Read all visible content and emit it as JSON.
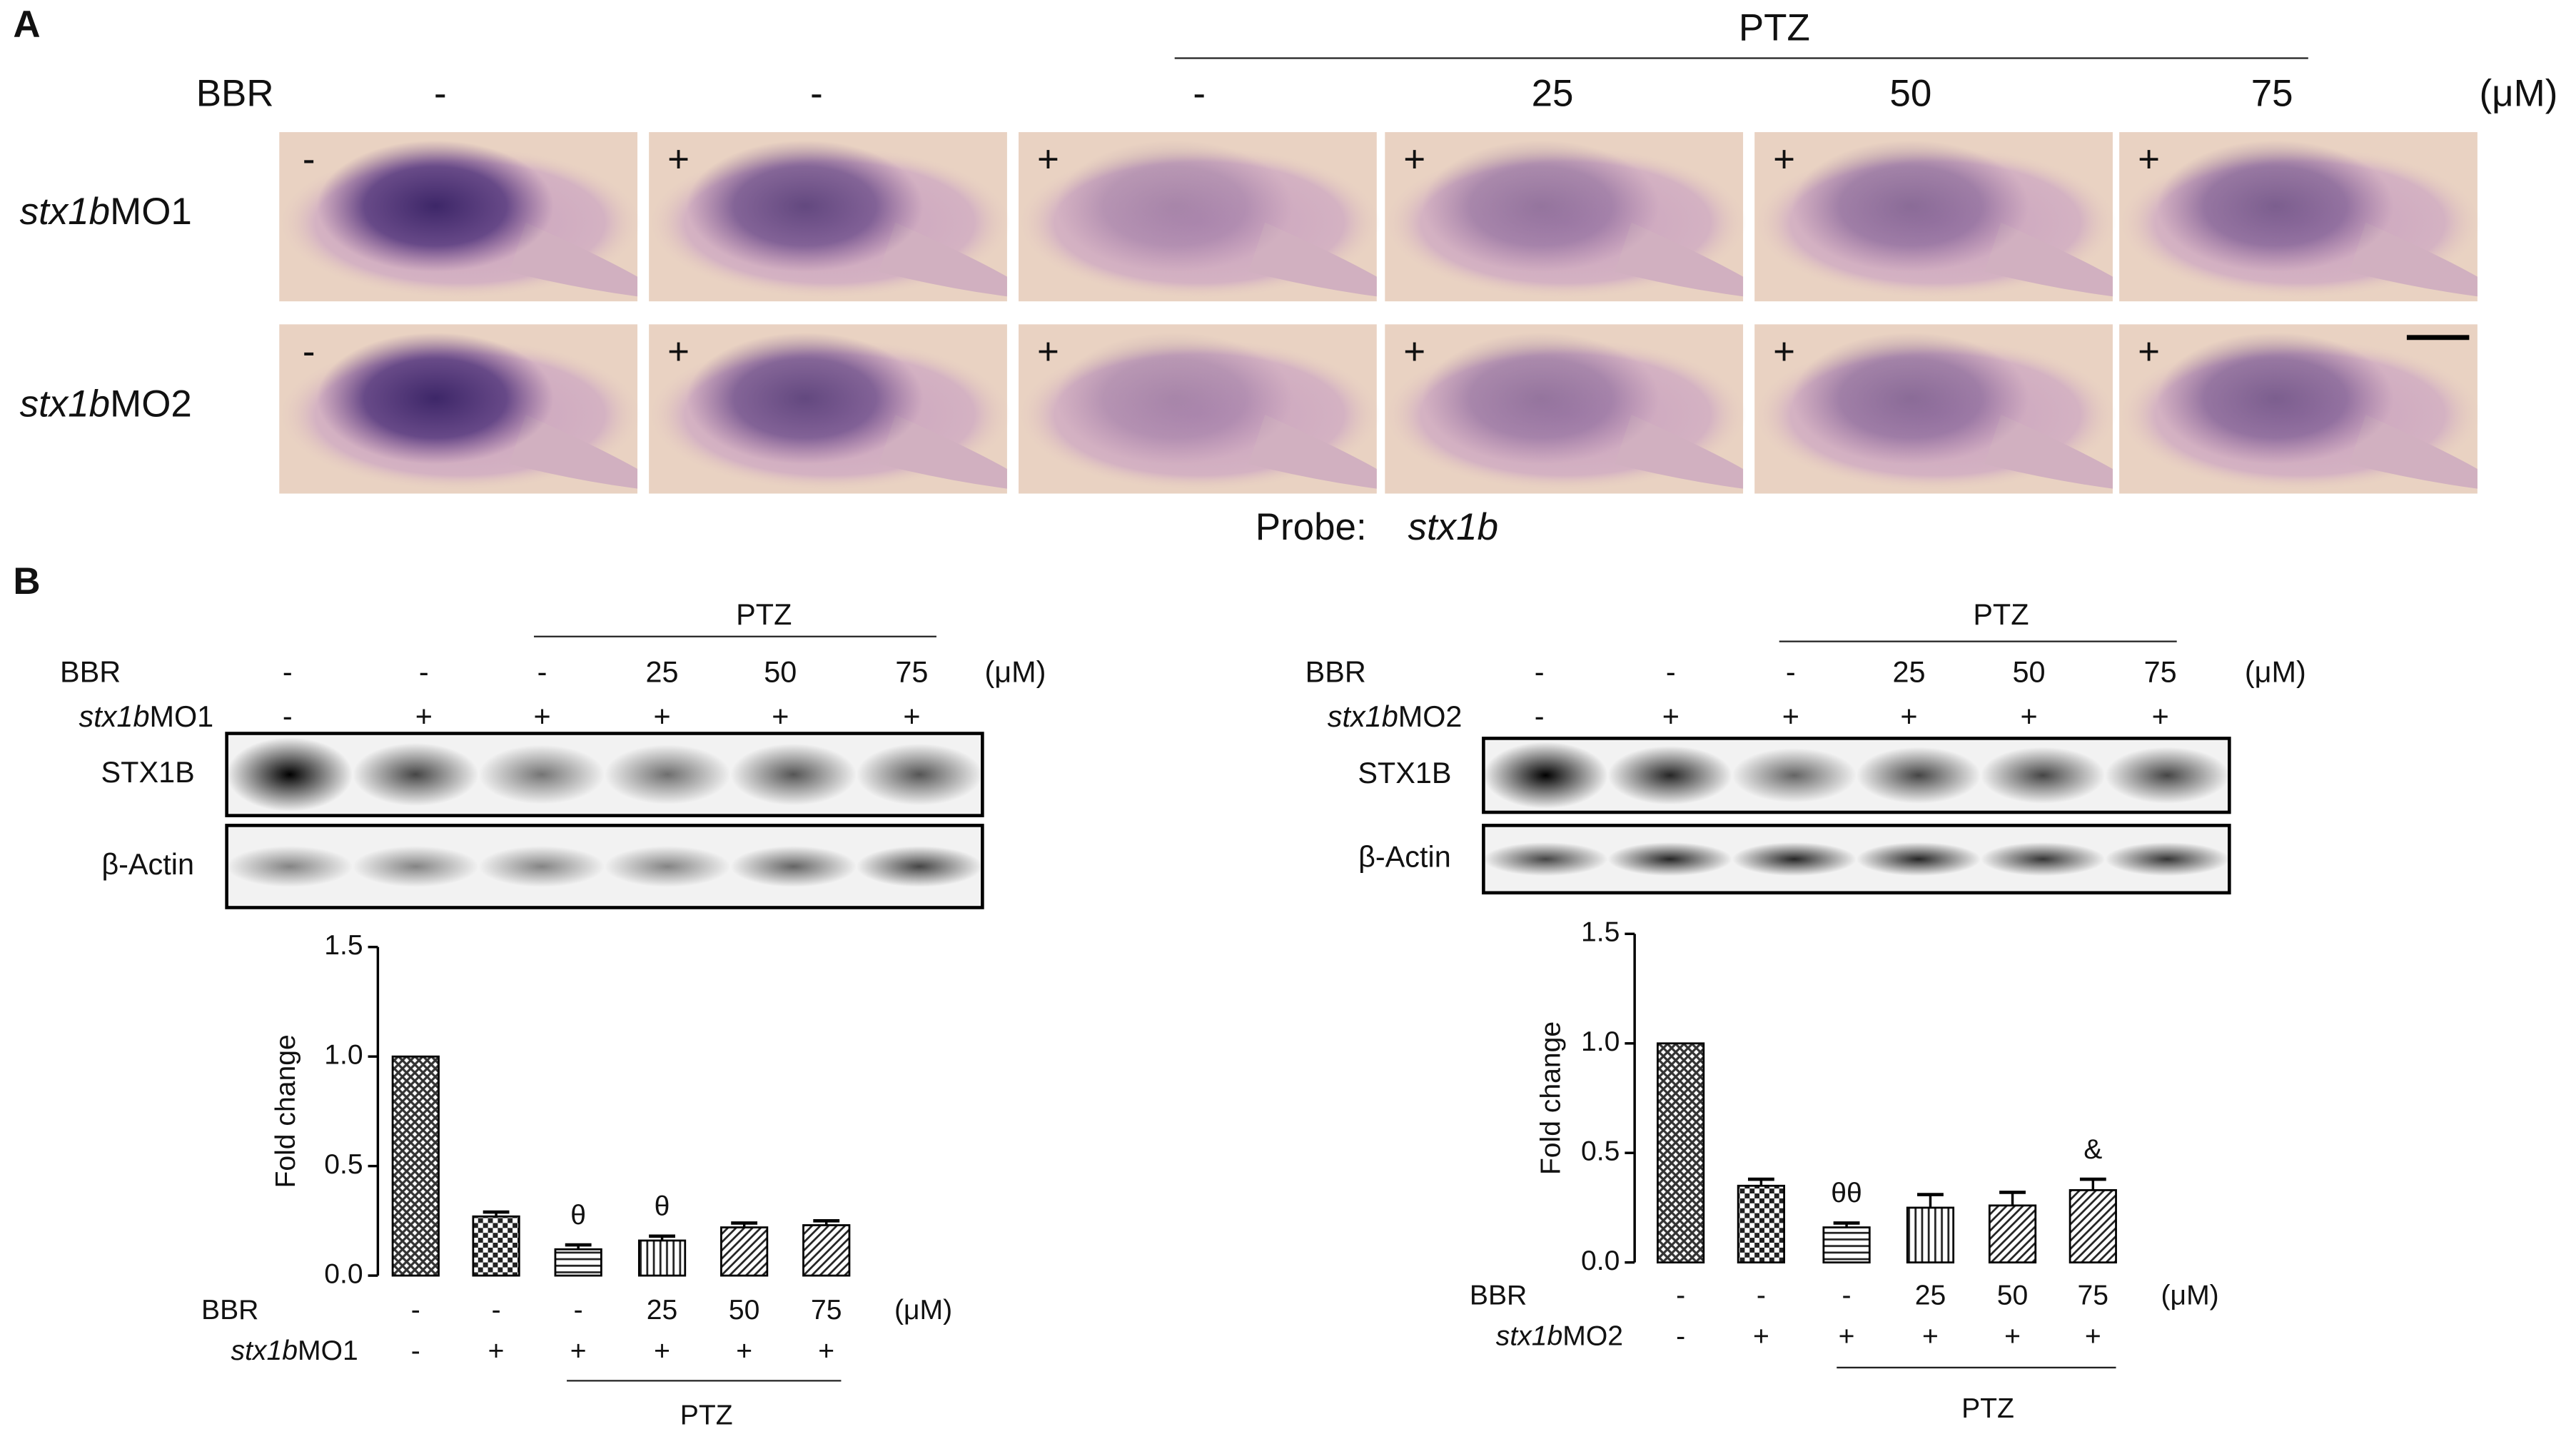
{
  "panel_a": {
    "label": "A",
    "ptz": "PTZ",
    "bbr_label": "BBR",
    "unit": "(μM)",
    "bbr": [
      "-",
      "-",
      "-",
      "25",
      "50",
      "75"
    ],
    "rows": [
      {
        "italic": "stx1b",
        "rest": "MO1",
        "signs": [
          "-",
          "+",
          "+",
          "+",
          "+",
          "+"
        ]
      },
      {
        "italic": "stx1b",
        "rest": "MO2",
        "signs": [
          "-",
          "+",
          "+",
          "+",
          "+",
          "+"
        ]
      }
    ],
    "probe": "Probe:",
    "probe_name": "stx1b"
  },
  "panel_b_label": "B",
  "blots": [
    {
      "ptz": "PTZ",
      "bbr_label": "BBR",
      "bbr": [
        "-",
        "-",
        "-",
        "25",
        "50",
        "75"
      ],
      "unit": "(μM)",
      "mo": {
        "italic": "stx1b",
        "rest": "MO1"
      },
      "mo_signs": [
        "-",
        "+",
        "+",
        "+",
        "+",
        "+"
      ],
      "bands": [
        "STX1B",
        "β-Actin"
      ]
    },
    {
      "ptz": "PTZ",
      "bbr_label": "BBR",
      "bbr": [
        "-",
        "-",
        "-",
        "25",
        "50",
        "75"
      ],
      "unit": "(μM)",
      "mo": {
        "italic": "stx1b",
        "rest": "MO2"
      },
      "mo_signs": [
        "-",
        "+",
        "+",
        "+",
        "+",
        "+"
      ],
      "bands": [
        "STX1B",
        "β-Actin"
      ]
    }
  ],
  "chart_data": [
    {
      "type": "bar",
      "y_label": "Fold change",
      "ylim": [
        0,
        1.5
      ],
      "yticks": [
        {
          "value": 0,
          "label": "0.0"
        },
        0.5,
        {
          "value": 1,
          "label": "1.0"
        },
        1.5
      ],
      "bbr_label": "BBR",
      "categories": [
        "-",
        "-",
        "-",
        "25",
        "50",
        "75"
      ],
      "unit": "(μM)",
      "mo": {
        "italic": "stx1b",
        "rest": "MO1"
      },
      "mo_signs": [
        "-",
        "+",
        "+",
        "+",
        "+",
        "+"
      ],
      "ptz": "PTZ",
      "values": [
        1.0,
        0.27,
        0.12,
        0.16,
        0.22,
        0.23
      ],
      "errors": [
        0,
        0.02,
        0.02,
        0.02,
        0.02,
        0.02
      ],
      "annotations": [
        null,
        null,
        "θ",
        "θ",
        null,
        null
      ],
      "patterns": [
        "crosshatch",
        "checker",
        "hlines",
        "vlines",
        "diag",
        "diag"
      ]
    },
    {
      "type": "bar",
      "y_label": "Fold change",
      "ylim": [
        0,
        1.5
      ],
      "yticks": [
        {
          "value": 0,
          "label": "0.0"
        },
        0.5,
        {
          "value": 1,
          "label": "1.0"
        },
        1.5
      ],
      "bbr_label": "BBR",
      "categories": [
        "-",
        "-",
        "-",
        "25",
        "50",
        "75"
      ],
      "unit": "(μM)",
      "mo": {
        "italic": "stx1b",
        "rest": "MO2"
      },
      "mo_signs": [
        "-",
        "+",
        "+",
        "+",
        "+",
        "+"
      ],
      "ptz": "PTZ",
      "values": [
        1.0,
        0.35,
        0.16,
        0.25,
        0.26,
        0.33
      ],
      "errors": [
        0,
        0.03,
        0.02,
        0.06,
        0.06,
        0.05
      ],
      "annotations": [
        null,
        null,
        "θθ",
        null,
        null,
        "&"
      ],
      "patterns": [
        "crosshatch",
        "checker",
        "hlines",
        "vlines",
        "diag",
        "diag"
      ]
    }
  ]
}
